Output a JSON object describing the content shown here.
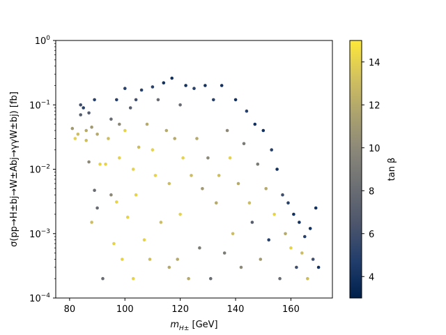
{
  "chart_data": {
    "type": "scatter",
    "title": "",
    "xlabel": "m_{H±} [GeV]",
    "xlabel_main": "m",
    "xlabel_sub": "H±",
    "xlabel_unit": "[GeV]",
    "ylabel": "σ(pp→H±bj→W±Abj→γγW±bj) [fb]",
    "x_range": [
      75,
      175
    ],
    "y_range": [
      0.0001,
      1
    ],
    "y_scale": "log",
    "x_ticks": [
      "80",
      "100",
      "120",
      "140",
      "160"
    ],
    "x_tick_values": [
      80,
      100,
      120,
      140,
      160
    ],
    "y_tick_values": [
      0.0001,
      0.001,
      0.01,
      0.1,
      1
    ],
    "y_tick_exponents": [
      "−4",
      "−3",
      "−2",
      "−1",
      "0"
    ],
    "y_tick_base": "10",
    "colorbar": {
      "label": "tan β",
      "range": [
        3,
        15
      ],
      "ticks": [
        "4",
        "6",
        "8",
        "10",
        "12",
        "14"
      ],
      "tick_values": [
        4,
        6,
        8,
        10,
        12,
        14
      ],
      "colormap": "cividis",
      "colors": [
        "#00204c",
        "#213d6b",
        "#4c556c",
        "#6b6e73",
        "#8a8779",
        "#aca26e",
        "#d3c25e",
        "#fee838"
      ]
    },
    "grid": false,
    "marker_size": 2.3,
    "points": [
      [
        81,
        0.043,
        11
      ],
      [
        82,
        0.03,
        14
      ],
      [
        83,
        0.035,
        13
      ],
      [
        84,
        0.1,
        6
      ],
      [
        84,
        0.07,
        7
      ],
      [
        85,
        0.09,
        5
      ],
      [
        86,
        0.028,
        13
      ],
      [
        86,
        0.04,
        12
      ],
      [
        87,
        0.075,
        7
      ],
      [
        87,
        0.013,
        10
      ],
      [
        88,
        0.0015,
        13
      ],
      [
        88,
        0.045,
        11
      ],
      [
        89,
        0.12,
        5
      ],
      [
        89,
        0.0047,
        8
      ],
      [
        90,
        0.035,
        12
      ],
      [
        90,
        0.0025,
        8
      ],
      [
        91,
        0.012,
        14
      ],
      [
        92,
        0.0002,
        8
      ],
      [
        93,
        0.012,
        14
      ],
      [
        94,
        0.03,
        13
      ],
      [
        95,
        0.06,
        8
      ],
      [
        95,
        0.004,
        10
      ],
      [
        96,
        0.0007,
        14
      ],
      [
        97,
        0.12,
        5
      ],
      [
        97,
        0.0031,
        14
      ],
      [
        98,
        0.05,
        10
      ],
      [
        98,
        0.015,
        14
      ],
      [
        99,
        0.0004,
        14
      ],
      [
        100,
        0.18,
        5
      ],
      [
        100,
        0.04,
        14
      ],
      [
        101,
        0.0018,
        14
      ],
      [
        102,
        0.09,
        7
      ],
      [
        103,
        0.01,
        14
      ],
      [
        103,
        0.0002,
        14
      ],
      [
        104,
        0.12,
        6
      ],
      [
        104,
        0.004,
        14
      ],
      [
        105,
        0.022,
        13
      ],
      [
        106,
        0.17,
        5
      ],
      [
        107,
        0.0008,
        14
      ],
      [
        108,
        0.05,
        12
      ],
      [
        109,
        0.0004,
        13
      ],
      [
        110,
        0.19,
        5
      ],
      [
        110,
        0.02,
        14
      ],
      [
        111,
        0.008,
        14
      ],
      [
        112,
        0.12,
        8
      ],
      [
        113,
        0.0015,
        13
      ],
      [
        114,
        0.22,
        4
      ],
      [
        115,
        0.04,
        12
      ],
      [
        116,
        0.006,
        13
      ],
      [
        116,
        0.0003,
        12
      ],
      [
        117,
        0.26,
        4
      ],
      [
        118,
        0.03,
        12
      ],
      [
        119,
        0.0004,
        12
      ],
      [
        120,
        0.1,
        8
      ],
      [
        120,
        0.002,
        14
      ],
      [
        121,
        0.015,
        14
      ],
      [
        122,
        0.2,
        4
      ],
      [
        123,
        0.0002,
        12
      ],
      [
        124,
        0.008,
        13
      ],
      [
        125,
        0.18,
        5
      ],
      [
        126,
        0.03,
        12
      ],
      [
        127,
        0.0006,
        9
      ],
      [
        128,
        0.005,
        11
      ],
      [
        129,
        0.2,
        4
      ],
      [
        130,
        0.015,
        10
      ],
      [
        131,
        0.0002,
        8
      ],
      [
        132,
        0.12,
        5
      ],
      [
        133,
        0.003,
        12
      ],
      [
        134,
        0.008,
        13
      ],
      [
        135,
        0.2,
        4
      ],
      [
        136,
        0.0005,
        9
      ],
      [
        137,
        0.04,
        10
      ],
      [
        138,
        0.015,
        14
      ],
      [
        139,
        0.001,
        13
      ],
      [
        140,
        0.12,
        4
      ],
      [
        141,
        0.006,
        12
      ],
      [
        142,
        0.0003,
        10
      ],
      [
        143,
        0.025,
        9
      ],
      [
        144,
        0.08,
        5
      ],
      [
        145,
        0.003,
        13
      ],
      [
        146,
        0.0015,
        7
      ],
      [
        147,
        0.05,
        4
      ],
      [
        148,
        0.012,
        9
      ],
      [
        149,
        0.0004,
        11
      ],
      [
        150,
        0.04,
        4
      ],
      [
        151,
        0.005,
        12
      ],
      [
        152,
        0.0008,
        5
      ],
      [
        153,
        0.02,
        5
      ],
      [
        154,
        0.002,
        14
      ],
      [
        155,
        0.01,
        4
      ],
      [
        156,
        0.0002,
        8
      ],
      [
        157,
        0.004,
        6
      ],
      [
        158,
        0.001,
        12
      ],
      [
        159,
        0.003,
        5
      ],
      [
        160,
        0.0006,
        14
      ],
      [
        161,
        0.002,
        4
      ],
      [
        162,
        0.0003,
        6
      ],
      [
        163,
        0.0015,
        4
      ],
      [
        164,
        0.0005,
        13
      ],
      [
        165,
        0.0009,
        5
      ],
      [
        166,
        0.0002,
        13
      ],
      [
        167,
        0.0012,
        4
      ],
      [
        168,
        0.0004,
        6
      ],
      [
        169,
        0.0025,
        4
      ],
      [
        170,
        0.0003,
        4
      ]
    ]
  }
}
